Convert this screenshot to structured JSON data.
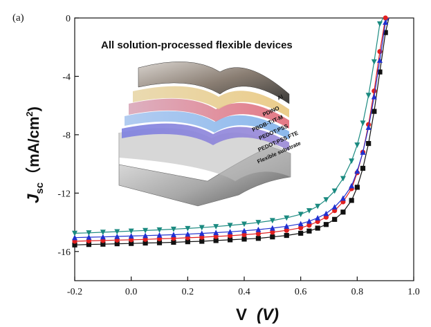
{
  "chart_data": {
    "type": "line",
    "panel_label": "(a)",
    "title": "All solution-processed flexible devices",
    "xlabel": "V (V)",
    "ylabel": "J_sc (mA/cm^2)",
    "ylabel_parts": {
      "j": "J",
      "sub": "sc",
      "unit_open": "（mA/cm",
      "sup": "2",
      "unit_close": ")"
    },
    "xlabel_parts": {
      "v": "V",
      "unit": "(V)"
    },
    "xlim": [
      -0.2,
      1.0
    ],
    "ylim": [
      -18,
      0
    ],
    "xticks": [
      -0.2,
      0.0,
      0.2,
      0.4,
      0.6,
      0.8,
      1.0
    ],
    "xtick_labels": [
      "-0.2",
      "0.0",
      "0.2",
      "0.4",
      "0.6",
      "0.8",
      "1.0"
    ],
    "yticks": [
      0,
      -4,
      -8,
      -12,
      -16
    ],
    "ytick_labels": [
      "0",
      "-4",
      "-8",
      "-12",
      "-16"
    ],
    "grid": false,
    "legend": "none",
    "series": [
      {
        "marker": "square",
        "color": "#111111",
        "x": [
          -0.2,
          -0.15,
          -0.1,
          -0.05,
          0.0,
          0.05,
          0.1,
          0.15,
          0.2,
          0.25,
          0.3,
          0.35,
          0.4,
          0.45,
          0.5,
          0.55,
          0.6,
          0.63,
          0.66,
          0.69,
          0.72,
          0.75,
          0.78,
          0.8,
          0.82,
          0.84,
          0.86,
          0.88,
          0.9
        ],
        "y": [
          -15.55,
          -15.52,
          -15.5,
          -15.47,
          -15.45,
          -15.42,
          -15.4,
          -15.37,
          -15.33,
          -15.3,
          -15.25,
          -15.2,
          -15.15,
          -15.1,
          -15.0,
          -14.9,
          -14.75,
          -14.6,
          -14.4,
          -14.15,
          -13.8,
          -13.3,
          -12.5,
          -11.6,
          -10.3,
          -8.6,
          -6.4,
          -3.7,
          -1.0
        ]
      },
      {
        "marker": "circle",
        "color": "#e02020",
        "x": [
          -0.2,
          -0.15,
          -0.1,
          -0.05,
          0.0,
          0.05,
          0.1,
          0.15,
          0.2,
          0.25,
          0.3,
          0.35,
          0.4,
          0.45,
          0.5,
          0.55,
          0.6,
          0.63,
          0.66,
          0.69,
          0.72,
          0.75,
          0.78,
          0.8,
          0.82,
          0.84,
          0.86,
          0.88,
          0.9
        ],
        "y": [
          -15.3,
          -15.27,
          -15.25,
          -15.22,
          -15.2,
          -15.17,
          -15.13,
          -15.1,
          -15.06,
          -15.02,
          -14.97,
          -14.92,
          -14.85,
          -14.78,
          -14.68,
          -14.55,
          -14.38,
          -14.2,
          -13.95,
          -13.65,
          -13.2,
          -12.6,
          -11.7,
          -10.6,
          -9.2,
          -7.3,
          -5.0,
          -2.3,
          0.0
        ]
      },
      {
        "marker": "triangle-up",
        "color": "#2030d0",
        "x": [
          -0.2,
          -0.15,
          -0.1,
          -0.05,
          0.0,
          0.05,
          0.1,
          0.15,
          0.2,
          0.25,
          0.3,
          0.35,
          0.4,
          0.45,
          0.5,
          0.55,
          0.6,
          0.63,
          0.66,
          0.69,
          0.72,
          0.75,
          0.78,
          0.8,
          0.82,
          0.84,
          0.86,
          0.88,
          0.9
        ],
        "y": [
          -15.05,
          -15.02,
          -15.0,
          -14.97,
          -14.94,
          -14.91,
          -14.88,
          -14.85,
          -14.81,
          -14.76,
          -14.71,
          -14.65,
          -14.58,
          -14.5,
          -14.4,
          -14.27,
          -14.1,
          -13.93,
          -13.7,
          -13.4,
          -12.95,
          -12.35,
          -11.5,
          -10.5,
          -9.2,
          -7.5,
          -5.4,
          -2.9,
          -0.3
        ]
      },
      {
        "marker": "triangle-down",
        "color": "#1a8a80",
        "x": [
          -0.2,
          -0.15,
          -0.1,
          -0.05,
          0.0,
          0.05,
          0.1,
          0.15,
          0.2,
          0.25,
          0.3,
          0.35,
          0.4,
          0.45,
          0.5,
          0.55,
          0.6,
          0.63,
          0.66,
          0.69,
          0.72,
          0.75,
          0.78,
          0.8,
          0.82,
          0.84,
          0.86,
          0.88
        ],
        "y": [
          -14.75,
          -14.72,
          -14.68,
          -14.64,
          -14.6,
          -14.56,
          -14.52,
          -14.47,
          -14.42,
          -14.36,
          -14.29,
          -14.21,
          -14.12,
          -14.01,
          -13.88,
          -13.7,
          -13.45,
          -13.2,
          -12.9,
          -12.45,
          -11.85,
          -11.0,
          -9.8,
          -8.7,
          -7.2,
          -5.3,
          -3.0,
          -0.4
        ]
      }
    ]
  },
  "inset": {
    "layers": [
      "Al",
      "PDINO",
      "PBDB-T:IT-M",
      "PEDOT:PSS",
      "PEDOT:PSS FTE",
      "Flexible substrate"
    ]
  }
}
